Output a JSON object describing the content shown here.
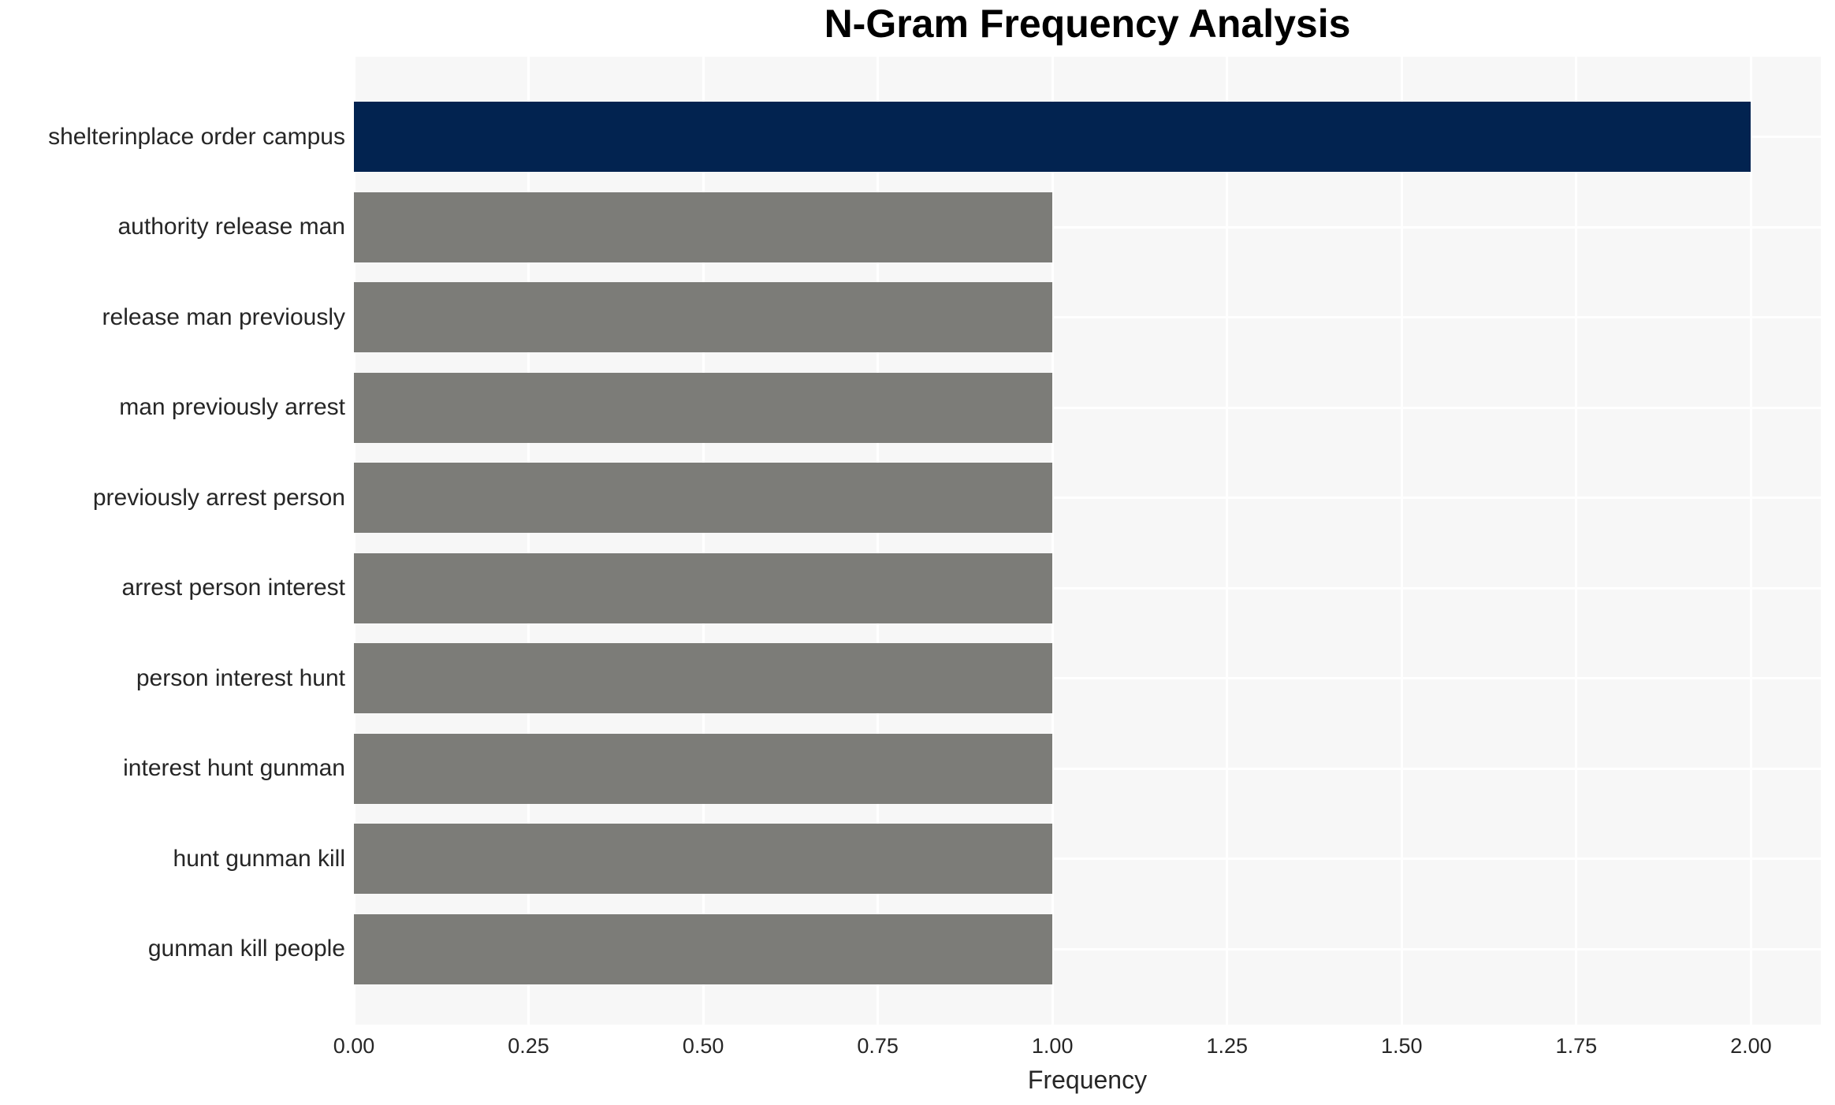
{
  "chart_data": {
    "type": "bar",
    "orientation": "horizontal",
    "title": "N-Gram Frequency Analysis",
    "xlabel": "Frequency",
    "ylabel": "",
    "categories": [
      "shelterinplace order campus",
      "authority release man",
      "release man previously",
      "man previously arrest",
      "previously arrest person",
      "arrest person interest",
      "person interest hunt",
      "interest hunt gunman",
      "hunt gunman kill",
      "gunman kill people"
    ],
    "values": [
      2.0,
      1.0,
      1.0,
      1.0,
      1.0,
      1.0,
      1.0,
      1.0,
      1.0,
      1.0
    ],
    "bar_colors": [
      "#022350",
      "#7c7c78",
      "#7c7c78",
      "#7c7c78",
      "#7c7c78",
      "#7c7c78",
      "#7c7c78",
      "#7c7c78",
      "#7c7c78",
      "#7c7c78"
    ],
    "xlim": [
      0,
      2.1
    ],
    "tick_values": [
      0.0,
      0.25,
      0.5,
      0.75,
      1.0,
      1.25,
      1.5,
      1.75,
      2.0
    ],
    "tick_labels": [
      "0.00",
      "0.25",
      "0.50",
      "0.75",
      "1.00",
      "1.25",
      "1.50",
      "1.75",
      "2.00"
    ],
    "grid": true,
    "legend": false,
    "colors": {
      "highlight_bar": "#022350",
      "default_bar": "#7c7c78",
      "plot_background": "#f7f7f7",
      "grid_line": "#ffffff",
      "tick_text": "#262626",
      "title_text": "#000000"
    }
  }
}
